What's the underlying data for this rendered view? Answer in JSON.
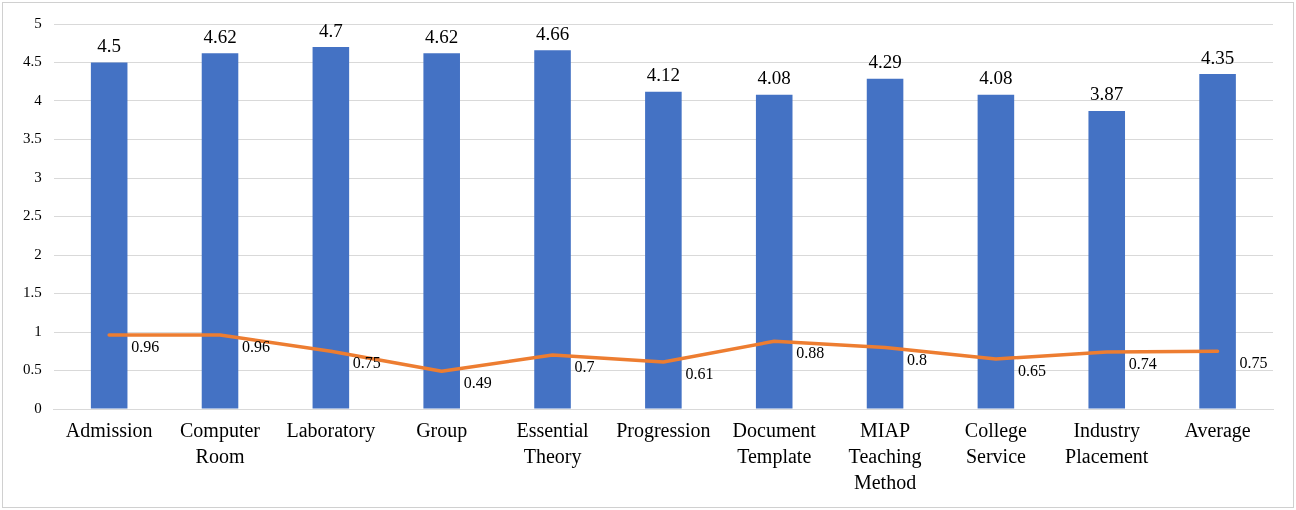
{
  "chart_data": {
    "type": "bar",
    "categories": [
      "Admission",
      "Computer Room",
      "Laboratory",
      "Group",
      "Essential Theory",
      "Progression",
      "Document Template",
      "MIAP Teaching Method",
      "College Service",
      "Industry Placement",
      "Average"
    ],
    "series": [
      {
        "color": "#4472c4",
        "values": [
          4.5,
          4.62,
          4.7,
          4.62,
          4.66,
          4.12,
          4.08,
          4.29,
          4.08,
          3.87,
          4.35
        ]
      },
      {
        "type": "line",
        "color": "#ed7d31",
        "values": [
          0.96,
          0.96,
          0.75,
          0.49,
          0.7,
          0.61,
          0.88,
          0.8,
          0.65,
          0.74,
          0.75
        ]
      }
    ],
    "ylim": [
      0,
      5
    ],
    "yticks": [
      0,
      0.5,
      1,
      1.5,
      2,
      2.5,
      3,
      3.5,
      4,
      4.5,
      5
    ],
    "grid": "y",
    "data_labels": true
  }
}
